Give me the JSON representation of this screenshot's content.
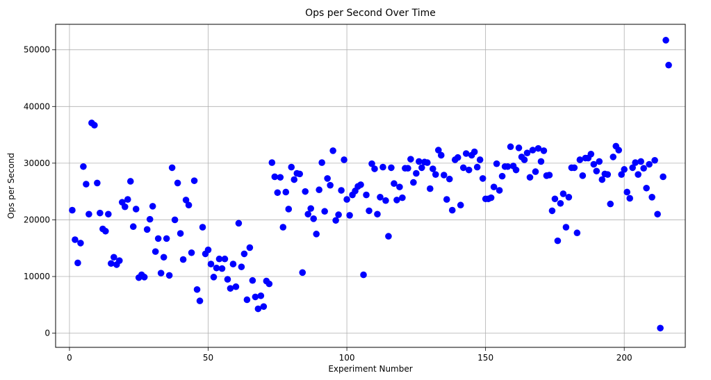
{
  "chart_data": {
    "type": "scatter",
    "title": "Ops per Second Over Time",
    "xlabel": "Experiment Number",
    "ylabel": "Ops per Second",
    "xlim": [
      -5,
      222
    ],
    "ylim": [
      -2500,
      54500
    ],
    "xticks": [
      0,
      50,
      100,
      150,
      200
    ],
    "yticks": [
      0,
      10000,
      20000,
      30000,
      40000,
      50000
    ],
    "grid": true,
    "point_color": "#0000ff",
    "series": [
      {
        "x": [
          1,
          2,
          3,
          4,
          5,
          6,
          7,
          8,
          9,
          10,
          11,
          12,
          13,
          14,
          15,
          16,
          17,
          18,
          19,
          20,
          21,
          22,
          23,
          24,
          25,
          26,
          27,
          28,
          29,
          30,
          31,
          32,
          33,
          34,
          35,
          36,
          37,
          38,
          39,
          40,
          41,
          42,
          43,
          44,
          45,
          46,
          47,
          48,
          49,
          50,
          51,
          52,
          53,
          54,
          55,
          56,
          57,
          58,
          59,
          60,
          61,
          62,
          63,
          64,
          65,
          66,
          67,
          68,
          69,
          70,
          71,
          72,
          73,
          74,
          75,
          76,
          77,
          78,
          79,
          80,
          81,
          82,
          83,
          84,
          85,
          86,
          87,
          88,
          89,
          90,
          91,
          92,
          93,
          94,
          95,
          96,
          97,
          98,
          99,
          100,
          101,
          102,
          103,
          104,
          105,
          106,
          107,
          108,
          109,
          110,
          111,
          112,
          113,
          114,
          115,
          116,
          117,
          118,
          119,
          120,
          121,
          122,
          123,
          124,
          125,
          126,
          127,
          128,
          129,
          130,
          131,
          132,
          133,
          134,
          135,
          136,
          137,
          138,
          139,
          140,
          141,
          142,
          143,
          144,
          145,
          146,
          147,
          148,
          149,
          150,
          151,
          152,
          153,
          154,
          155,
          156,
          157,
          158,
          159,
          160,
          161,
          162,
          163,
          164,
          165,
          166,
          167,
          168,
          169,
          170,
          171,
          172,
          173,
          174,
          175,
          176,
          177,
          178,
          179,
          180,
          181,
          182,
          183,
          184,
          185,
          186,
          187,
          188,
          189,
          190,
          191,
          192,
          193,
          194,
          195,
          196,
          197,
          198,
          199,
          200,
          201,
          202,
          203,
          204,
          205,
          206,
          207,
          208,
          209,
          210,
          211,
          212,
          213,
          214,
          215,
          216
        ],
        "y": [
          21700,
          16500,
          12400,
          15900,
          29400,
          26300,
          21000,
          37100,
          36700,
          26500,
          21200,
          18400,
          18000,
          21000,
          12300,
          13400,
          12100,
          12800,
          23100,
          22300,
          23600,
          26800,
          18800,
          21900,
          9800,
          10300,
          9900,
          18300,
          20100,
          22400,
          14400,
          16700,
          10600,
          13400,
          16700,
          10200,
          29200,
          20000,
          26500,
          17600,
          13000,
          23500,
          22600,
          14200,
          26900,
          7700,
          5700,
          18700,
          14000,
          14700,
          12200,
          9900,
          11500,
          13100,
          11400,
          13100,
          9500,
          7900,
          12200,
          8200,
          19400,
          11700,
          14000,
          5900,
          15100,
          9300,
          6400,
          4300,
          6600,
          4700,
          9200,
          8700,
          30100,
          27600,
          24800,
          27500,
          18700,
          24900,
          21900,
          29300,
          27100,
          28200,
          28100,
          10700,
          25000,
          21000,
          22000,
          20200,
          17500,
          25300,
          30100,
          21500,
          27300,
          26100,
          32200,
          19900,
          20900,
          25200,
          30600,
          23600,
          20800,
          24400,
          25100,
          25900,
          26200,
          10300,
          24400,
          21600,
          29900,
          29000,
          21000,
          24000,
          29300,
          23400,
          17100,
          29200,
          26400,
          23500,
          25800,
          23900,
          29100,
          29100,
          30700,
          26600,
          28200,
          30300,
          29200,
          30200,
          30100,
          25500,
          29000,
          28000,
          32300,
          31400,
          27900,
          23600,
          27200,
          21700,
          30600,
          31000,
          22600,
          29200,
          31700,
          28800,
          31400,
          32000,
          29300,
          30600,
          27300,
          23700,
          23700,
          23900,
          25800,
          29900,
          25200,
          27700,
          29400,
          29400,
          32900,
          29500,
          28800,
          32700,
          31100,
          30600,
          31800,
          27500,
          32300,
          28500,
          32600,
          30300,
          32200,
          27800,
          27900,
          21600,
          23700,
          16300,
          22900,
          24600,
          18700,
          24000,
          29200,
          29200,
          17700,
          30600,
          27800,
          30900,
          30900,
          31600,
          29800,
          28600,
          30300,
          27100,
          28100,
          28000,
          22800,
          31100,
          33000,
          32300,
          28000,
          28900,
          24900,
          23800,
          29200,
          30100,
          28000,
          30300,
          29100,
          25600,
          29800,
          24000,
          30500,
          21000,
          900,
          27600,
          51700,
          47300
        ]
      }
    ]
  }
}
